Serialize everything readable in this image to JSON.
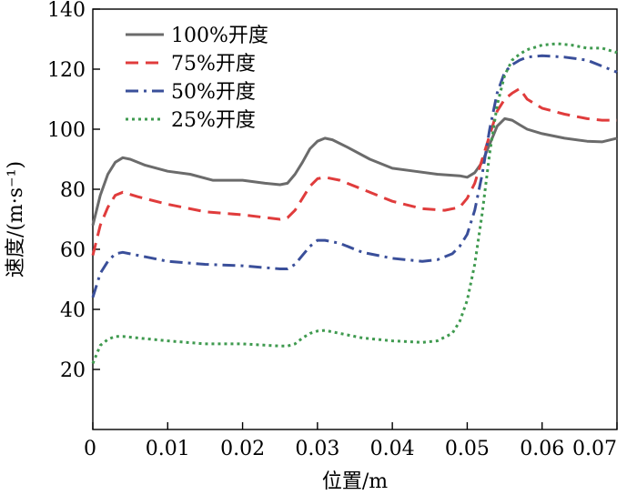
{
  "chart_data": {
    "type": "line",
    "xlabel": "位置/m",
    "ylabel": "速度/(m·s⁻¹)",
    "xlim": [
      0,
      0.07
    ],
    "ylim": [
      0,
      140
    ],
    "xticks": [
      0,
      0.01,
      0.02,
      0.03,
      0.04,
      0.05,
      0.06,
      0.07
    ],
    "xtick_labels": [
      "0",
      "0.01",
      "0.02",
      "0.03",
      "0.04",
      "0.05",
      "0.06",
      "0.07"
    ],
    "yticks": [
      20,
      40,
      60,
      80,
      100,
      120,
      140
    ],
    "ytick_labels": [
      "20",
      "40",
      "60",
      "80",
      "100",
      "120",
      "140"
    ],
    "legend_position": "top-left",
    "grid": false,
    "series": [
      {
        "name": "100%开度",
        "color": "#6b6b6b",
        "style": "solid",
        "x": [
          0,
          0.001,
          0.002,
          0.003,
          0.004,
          0.005,
          0.007,
          0.01,
          0.013,
          0.016,
          0.02,
          0.023,
          0.025,
          0.026,
          0.027,
          0.028,
          0.029,
          0.03,
          0.031,
          0.032,
          0.034,
          0.037,
          0.04,
          0.043,
          0.046,
          0.049,
          0.05,
          0.051,
          0.052,
          0.053,
          0.054,
          0.055,
          0.056,
          0.057,
          0.058,
          0.06,
          0.063,
          0.066,
          0.068,
          0.07
        ],
        "y": [
          68,
          78,
          85,
          89,
          90.5,
          90,
          88,
          86,
          85,
          83,
          83,
          82,
          81.5,
          82,
          85,
          89,
          93.5,
          96,
          97,
          96.5,
          94,
          90,
          87,
          86,
          85,
          84.5,
          84,
          85.5,
          89,
          95,
          101,
          103.5,
          103,
          101.5,
          100,
          98.5,
          97,
          96,
          95.8,
          97
        ]
      },
      {
        "name": "75%开度",
        "color": "#e03c3c",
        "style": "dashed",
        "x": [
          0,
          0.001,
          0.002,
          0.003,
          0.004,
          0.006,
          0.01,
          0.015,
          0.02,
          0.025,
          0.026,
          0.027,
          0.028,
          0.029,
          0.03,
          0.031,
          0.033,
          0.036,
          0.04,
          0.044,
          0.047,
          0.049,
          0.05,
          0.051,
          0.052,
          0.053,
          0.054,
          0.055,
          0.056,
          0.057,
          0.058,
          0.06,
          0.063,
          0.066,
          0.068,
          0.07
        ],
        "y": [
          58,
          68,
          74,
          78,
          79,
          77.5,
          75,
          72.5,
          71.5,
          70,
          70.5,
          73,
          77,
          81,
          83.5,
          84,
          83,
          80,
          76,
          73.5,
          73,
          74,
          77,
          82,
          90,
          98,
          106,
          110,
          112,
          113.5,
          110,
          107,
          105,
          103.5,
          103,
          103
        ]
      },
      {
        "name": "50%开度",
        "color": "#3a4f9a",
        "style": "dashdot",
        "x": [
          0,
          0.001,
          0.002,
          0.003,
          0.004,
          0.006,
          0.01,
          0.015,
          0.02,
          0.025,
          0.026,
          0.027,
          0.028,
          0.029,
          0.03,
          0.031,
          0.033,
          0.036,
          0.04,
          0.044,
          0.046,
          0.048,
          0.049,
          0.05,
          0.051,
          0.052,
          0.053,
          0.054,
          0.055,
          0.056,
          0.057,
          0.058,
          0.06,
          0.063,
          0.066,
          0.068,
          0.07
        ],
        "y": [
          44,
          52,
          56,
          58.5,
          59,
          58,
          56,
          55,
          54.5,
          53.5,
          53.5,
          55,
          58,
          61,
          63,
          63,
          62,
          59,
          57,
          56,
          56.5,
          58.5,
          61,
          65,
          73,
          85,
          100,
          112,
          119,
          121.5,
          123,
          124,
          124.5,
          124,
          123,
          121,
          119
        ]
      },
      {
        "name": "25%开度",
        "color": "#3f9a4f",
        "style": "dotted",
        "x": [
          0,
          0.001,
          0.002,
          0.003,
          0.004,
          0.006,
          0.01,
          0.015,
          0.02,
          0.025,
          0.026,
          0.027,
          0.028,
          0.029,
          0.03,
          0.031,
          0.033,
          0.036,
          0.04,
          0.044,
          0.046,
          0.048,
          0.049,
          0.05,
          0.051,
          0.052,
          0.053,
          0.054,
          0.055,
          0.056,
          0.057,
          0.058,
          0.06,
          0.062,
          0.064,
          0.066,
          0.068,
          0.07
        ],
        "y": [
          22,
          28,
          30,
          31,
          31,
          30.5,
          29.5,
          28.5,
          28.5,
          27.8,
          27.8,
          28.5,
          30.5,
          32,
          32.8,
          33,
          32,
          30.5,
          29.5,
          29,
          29.5,
          32,
          36,
          43,
          55,
          72,
          92,
          108,
          118,
          123,
          125,
          126.5,
          128,
          128.5,
          128,
          127,
          127,
          125.5
        ]
      }
    ]
  }
}
